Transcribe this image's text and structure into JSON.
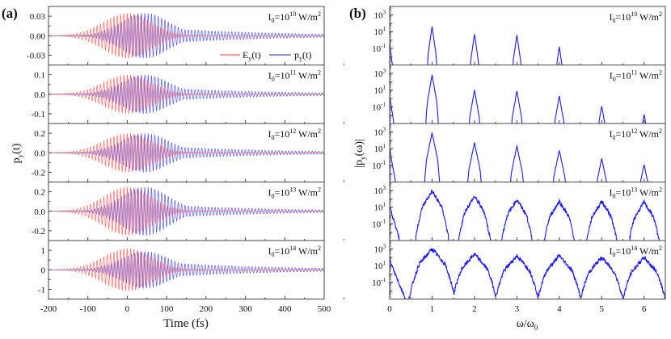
{
  "figure": {
    "panel_a_label": "(a)",
    "panel_b_label": "(b)"
  },
  "chart_data": [
    {
      "type": "line",
      "panel": "(a)",
      "title": "",
      "xlabel": "Time (fs)",
      "ylabel": "p_y(t)",
      "xlim": [
        -200,
        500
      ],
      "xticks": [
        -200,
        -100,
        0,
        100,
        200,
        300,
        400,
        500
      ],
      "legend": [
        {
          "name": "E_y(t)",
          "color": "#ff3b3b"
        },
        {
          "name": "p_y(t)",
          "color": "#2323e6"
        }
      ],
      "legend_position": "lower-right of first subplot",
      "colors": {
        "E": "#ff3b3b",
        "p": "#2323e6"
      },
      "subplots": [
        {
          "intensity_label": "I0=10^10 W/m^2",
          "exp": "10",
          "ylim": [
            -0.045,
            0.045
          ],
          "yticks": [
            "0.03",
            "0.00",
            "-0.03"
          ],
          "ytick_vals": [
            0.03,
            0.0,
            -0.03
          ],
          "E_peak": 0.035,
          "p_peak": 0.035,
          "p_tail_decay": 0.25
        },
        {
          "intensity_label": "I0=10^11 W/m^2",
          "exp": "11",
          "ylim": [
            -0.15,
            0.15
          ],
          "yticks": [
            "0.1",
            "0.0",
            "-0.1"
          ],
          "ytick_vals": [
            0.1,
            0.0,
            -0.1
          ],
          "E_peak": 0.1,
          "p_peak": 0.1,
          "p_tail_decay": 0.25
        },
        {
          "intensity_label": "I0=10^12 W/m^2",
          "exp": "12",
          "ylim": [
            -0.3,
            0.3
          ],
          "yticks": [
            "0.2",
            "0.0",
            "-0.2"
          ],
          "ytick_vals": [
            0.2,
            0.0,
            -0.2
          ],
          "E_peak": 0.2,
          "p_peak": 0.2,
          "p_tail_decay": 0.25
        },
        {
          "intensity_label": "I0=10^13 W/m^2",
          "exp": "13",
          "ylim": [
            -0.3,
            0.3
          ],
          "yticks": [
            "0.2",
            "0.0",
            "-0.2"
          ],
          "ytick_vals": [
            0.2,
            0.0,
            -0.2
          ],
          "E_peak": 0.25,
          "p_peak": 0.25,
          "p_tail_decay": 0.2
        },
        {
          "intensity_label": "I0=10^14 W/m^2",
          "exp": "14",
          "ylim": [
            -1.5,
            1.5
          ],
          "yticks": [
            "1",
            "0",
            "-1"
          ],
          "ytick_vals": [
            1,
            0,
            -1
          ],
          "E_peak": 1.1,
          "p_peak": 0.95,
          "p_tail_decay": 0.3
        }
      ]
    },
    {
      "type": "line",
      "panel": "(b)",
      "title": "",
      "xlabel": "ω/ω0",
      "ylabel": "|p_y(ω)|",
      "xlim": [
        0,
        6.5
      ],
      "xticks": [
        0,
        1,
        2,
        3,
        4,
        5,
        6
      ],
      "yscale": "log",
      "ylim": [
        0.001,
        10000
      ],
      "yticks": [
        "10^3",
        "10^1",
        "10^-1"
      ],
      "color": "#1a1aff",
      "subplots": [
        {
          "intensity_label": "I0=10^10 W/m^2",
          "exp": "10",
          "harmonic_peaks_log10": [
            1.6,
            0.7,
            0.6,
            -0.8
          ],
          "dc_log10": -0.4,
          "width": 0.09
        },
        {
          "intensity_label": "I0=10^11 W/m^2",
          "exp": "11",
          "harmonic_peaks_log10": [
            2.8,
            1.0,
            0.9,
            0.3,
            -0.9,
            -1.9
          ],
          "dc_log10": 0.3,
          "width": 0.11
        },
        {
          "intensity_label": "I0=10^12 W/m^2",
          "exp": "12",
          "harmonic_peaks_log10": [
            2.9,
            1.7,
            1.3,
            0.8,
            -0.2,
            -0.9
          ],
          "dc_log10": 0.9,
          "width": 0.13
        },
        {
          "intensity_label": "I0=10^13 W/m^2",
          "exp": "13",
          "harmonic_peaks_log10": [
            2.9,
            2.3,
            1.9,
            1.7,
            1.7,
            1.6
          ],
          "dc_log10": 1.0,
          "width": 0.22
        },
        {
          "intensity_label": "I0=10^14 W/m^2",
          "exp": "14",
          "harmonic_peaks_log10": [
            3.0,
            2.4,
            2.2,
            2.2,
            2.0,
            2.0
          ],
          "dc_log10": 1.6,
          "width": 0.3
        }
      ]
    }
  ]
}
